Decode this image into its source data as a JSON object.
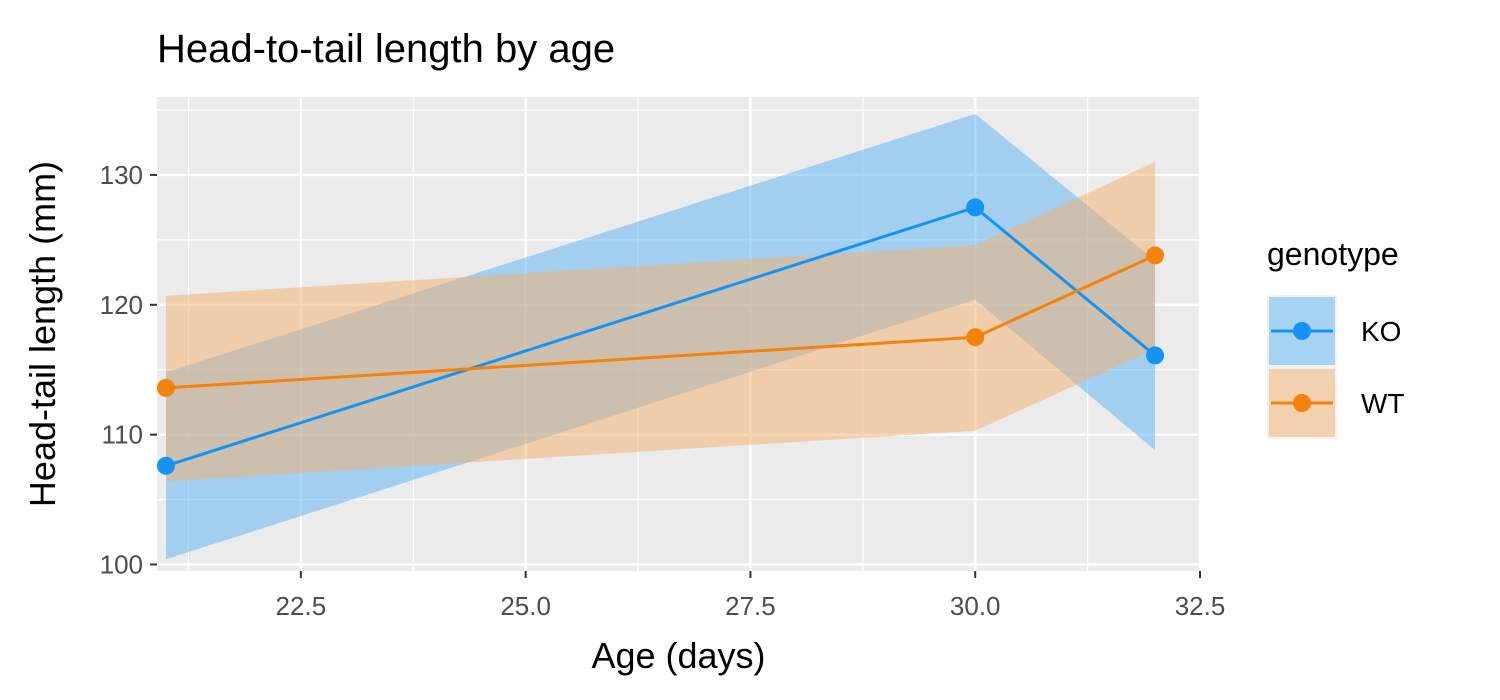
{
  "chart_data": {
    "type": "line",
    "title": "Head-to-tail length by age",
    "xlabel": "Age (days)",
    "ylabel": "Head-tail length (mm)",
    "xlim": [
      20.9,
      32.5
    ],
    "ylim": [
      99.5,
      136
    ],
    "x_ticks": [
      22.5,
      25.0,
      27.5,
      30.0,
      32.5
    ],
    "x_tick_labels": [
      "22.5",
      "25.0",
      "27.5",
      "30.0",
      "32.5"
    ],
    "y_ticks": [
      100,
      110,
      120,
      130
    ],
    "y_tick_labels": [
      "100",
      "110",
      "120",
      "130"
    ],
    "grid": true,
    "legend": {
      "title": "genotype",
      "position": "right"
    },
    "series": [
      {
        "name": "KO",
        "color": "#1493f5",
        "ribbon_color": "#5ab4f5",
        "x": [
          21,
          30,
          32
        ],
        "y": [
          107.6,
          127.5,
          116.1
        ],
        "lower": [
          100.4,
          120.4,
          108.8
        ],
        "upper": [
          114.8,
          134.7,
          123.4
        ]
      },
      {
        "name": "WT",
        "color": "#f5820d",
        "ribbon_color": "#f5b06a",
        "x": [
          21,
          30,
          32
        ],
        "y": [
          113.6,
          117.5,
          123.8
        ],
        "lower": [
          106.4,
          110.3,
          116.6
        ],
        "upper": [
          120.7,
          124.6,
          131.0
        ]
      }
    ]
  }
}
